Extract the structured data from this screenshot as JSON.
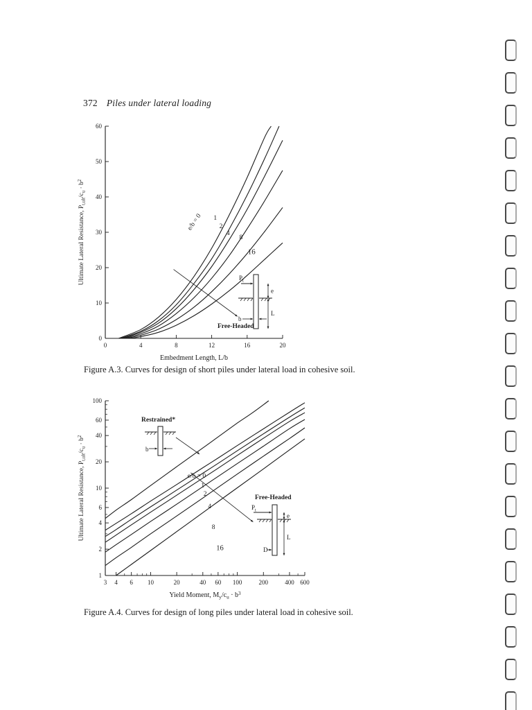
{
  "page": {
    "page_number": "372",
    "running_title": "Piles under lateral loading",
    "ink_color": "#1c1c1c",
    "paper_color": "#ffffff",
    "binding_hole_count": 21
  },
  "chart_data": [
    {
      "id": "figure-a3",
      "type": "line",
      "caption": "Figure A.3. Curves for design of short piles under lateral load in cohesive soil.",
      "xlabel": "Embedment Length, L/b",
      "ylabel": "Ultimate Lateral Resistance, P_{t,ult}/c_u · b^2",
      "x_scale": "linear",
      "y_scale": "linear",
      "xlim": [
        0,
        20
      ],
      "ylim": [
        0,
        60
      ],
      "x_ticks": [
        0,
        4,
        8,
        12,
        16,
        20
      ],
      "y_ticks": [
        0,
        10,
        20,
        30,
        40,
        50,
        60
      ],
      "grid": false,
      "legend": "labels on curves",
      "series": [
        {
          "name": "e/b = 0",
          "x": [
            1.5,
            4,
            6,
            8,
            10,
            12,
            14,
            16,
            18,
            18.7
          ],
          "y": [
            0,
            2.5,
            6,
            11,
            17.5,
            25.5,
            35,
            45.5,
            57,
            60
          ]
        },
        {
          "name": "1",
          "x": [
            1.7,
            4,
            6,
            8,
            10,
            12,
            14,
            16,
            18,
            19.6
          ],
          "y": [
            0,
            2,
            5,
            9.5,
            15.5,
            22.5,
            31,
            40.5,
            51,
            60
          ]
        },
        {
          "name": "2",
          "x": [
            1.9,
            4,
            6,
            8,
            10,
            12,
            14,
            16,
            18,
            20
          ],
          "y": [
            0,
            1.7,
            4.3,
            8.4,
            13.8,
            20.3,
            28,
            36.5,
            46,
            56
          ]
        },
        {
          "name": "4",
          "x": [
            2.1,
            4,
            6,
            8,
            10,
            12,
            14,
            16,
            18,
            20
          ],
          "y": [
            0,
            1.3,
            3.5,
            7,
            11.5,
            17,
            23.5,
            31,
            39,
            47.5
          ]
        },
        {
          "name": "8",
          "x": [
            2.4,
            4,
            6,
            8,
            10,
            12,
            14,
            16,
            18,
            20
          ],
          "y": [
            0,
            0.9,
            2.6,
            5.3,
            8.8,
            13.2,
            18.3,
            24,
            30.3,
            37
          ]
        },
        {
          "name": "16",
          "x": [
            2.7,
            4,
            6,
            8,
            10,
            12,
            14,
            16,
            18,
            20
          ],
          "y": [
            0,
            0.5,
            1.7,
            3.7,
            6.4,
            9.7,
            13.5,
            17.8,
            22.4,
            27
          ]
        }
      ],
      "inset": {
        "title": "Free-Headed",
        "load_label": "P_t",
        "dim_eccentricity": "e",
        "dim_embedment": "L",
        "dim_width": "b"
      }
    },
    {
      "id": "figure-a4",
      "type": "line",
      "caption": "Figure A.4. Curves for design of long piles under lateral load in cohesive soil.",
      "xlabel": "Yield Moment, M_y/c_u · b^3",
      "ylabel": "Ultimate Lateral Resistance, P_{t,ult}/c_u · b^2",
      "x_scale": "log",
      "y_scale": "log",
      "xlim": [
        3,
        600
      ],
      "ylim": [
        1,
        100
      ],
      "x_ticks": [
        3,
        4,
        6,
        10,
        20,
        40,
        60,
        100,
        200,
        400,
        600
      ],
      "y_ticks": [
        1,
        2,
        4,
        6,
        10,
        20,
        40,
        60,
        100
      ],
      "grid": false,
      "legend": "labels on curves",
      "series": [
        {
          "name": "Restrained",
          "x": [
            3,
            4,
            6,
            10,
            20,
            40,
            60,
            100,
            150,
            230
          ],
          "y": [
            4.5,
            5.6,
            7.4,
            10.7,
            17.6,
            28.8,
            38.5,
            55.6,
            73,
            100
          ]
        },
        {
          "name": "e/b = 0",
          "x": [
            3,
            4,
            6,
            10,
            20,
            40,
            60,
            100,
            200,
            400,
            600
          ],
          "y": [
            3.3,
            3.95,
            5.1,
            7.1,
            11,
            17.1,
            22.1,
            30.7,
            47.7,
            74,
            95
          ]
        },
        {
          "name": "1",
          "x": [
            3,
            4,
            6,
            10,
            20,
            40,
            60,
            100,
            200,
            400,
            600
          ],
          "y": [
            2.8,
            3.35,
            4.4,
            6.1,
            9.5,
            14.8,
            19.2,
            26.8,
            41.8,
            65,
            83
          ]
        },
        {
          "name": "2",
          "x": [
            3,
            4,
            6,
            10,
            20,
            40,
            60,
            100,
            200,
            400,
            600
          ],
          "y": [
            2.4,
            2.9,
            3.8,
            5.3,
            8.3,
            13,
            16.9,
            23.7,
            37.2,
            58,
            73
          ]
        },
        {
          "name": "4",
          "x": [
            3,
            4,
            6,
            10,
            20,
            40,
            60,
            100,
            200,
            400,
            600
          ],
          "y": [
            1.85,
            2.25,
            2.95,
            4.15,
            6.55,
            10.4,
            13.6,
            19.1,
            30.2,
            48,
            61
          ]
        },
        {
          "name": "8",
          "x": [
            3,
            4,
            6,
            10,
            20,
            40,
            60,
            100,
            200,
            400,
            600
          ],
          "y": [
            1.3,
            1.6,
            2.1,
            3,
            4.8,
            7.7,
            10.2,
            14.5,
            23.2,
            37,
            49
          ]
        },
        {
          "name": "16",
          "x": [
            4,
            6,
            10,
            20,
            40,
            60,
            100,
            200,
            400,
            600
          ],
          "y": [
            1,
            1.34,
            1.93,
            3.18,
            5.24,
            7,
            10.1,
            16.6,
            27.4,
            36.7
          ]
        }
      ],
      "inset_restrained": {
        "title": "Restrained*",
        "dim_width": "b"
      },
      "inset_free": {
        "title": "Free-Headed",
        "load_label": "P_t",
        "dim_eccentricity": "e",
        "dim_embedment": "L",
        "dim_width": "D"
      }
    }
  ]
}
